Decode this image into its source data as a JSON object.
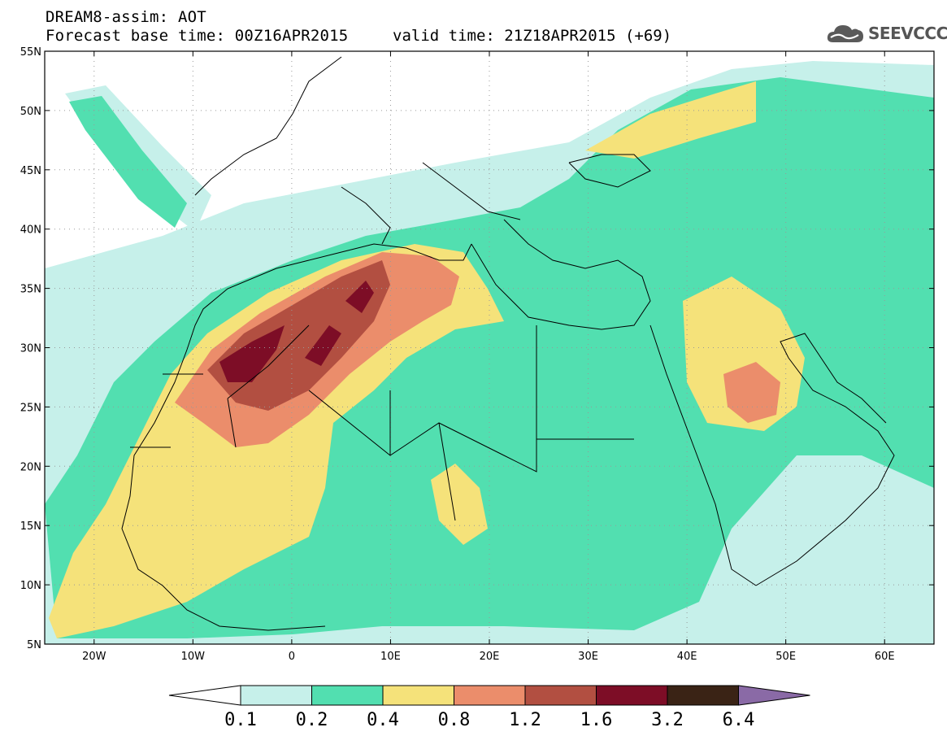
{
  "header": {
    "title": "DREAM8-assim: AOT",
    "base_time": "Forecast base time: 00Z16APR2015",
    "valid_time": "valid time: 21Z18APR2015 (+69)"
  },
  "logo": {
    "text": "SEEVCCC",
    "icon": "cloud-icon"
  },
  "map": {
    "lon_range": [
      -25,
      65
    ],
    "lat_range": [
      5,
      55
    ],
    "lat_ticks": [
      {
        "value": 55,
        "label": "55N"
      },
      {
        "value": 50,
        "label": "50N"
      },
      {
        "value": 45,
        "label": "45N"
      },
      {
        "value": 40,
        "label": "40N"
      },
      {
        "value": 35,
        "label": "35N"
      },
      {
        "value": 30,
        "label": "30N"
      },
      {
        "value": 25,
        "label": "25N"
      },
      {
        "value": 20,
        "label": "20N"
      },
      {
        "value": 15,
        "label": "15N"
      },
      {
        "value": 10,
        "label": "10N"
      },
      {
        "value": 5,
        "label": "5N"
      }
    ],
    "lon_ticks": [
      {
        "value": -20,
        "label": "20W"
      },
      {
        "value": -10,
        "label": "10W"
      },
      {
        "value": 0,
        "label": "0"
      },
      {
        "value": 10,
        "label": "10E"
      },
      {
        "value": 20,
        "label": "20E"
      },
      {
        "value": 30,
        "label": "30E"
      },
      {
        "value": 40,
        "label": "40E"
      },
      {
        "value": 50,
        "label": "50E"
      },
      {
        "value": 60,
        "label": "60E"
      }
    ],
    "grid": "dotted"
  },
  "colorbar": {
    "levels": [
      "0.1",
      "0.2",
      "0.4",
      "0.8",
      "1.2",
      "1.6",
      "3.2",
      "6.4"
    ],
    "colors": [
      "#ffffff",
      "#c6f0ea",
      "#52dfb0",
      "#f5e27a",
      "#eb8d6b",
      "#b24f41",
      "#7d0d26",
      "#3a2315",
      "#8a6aa6"
    ]
  }
}
